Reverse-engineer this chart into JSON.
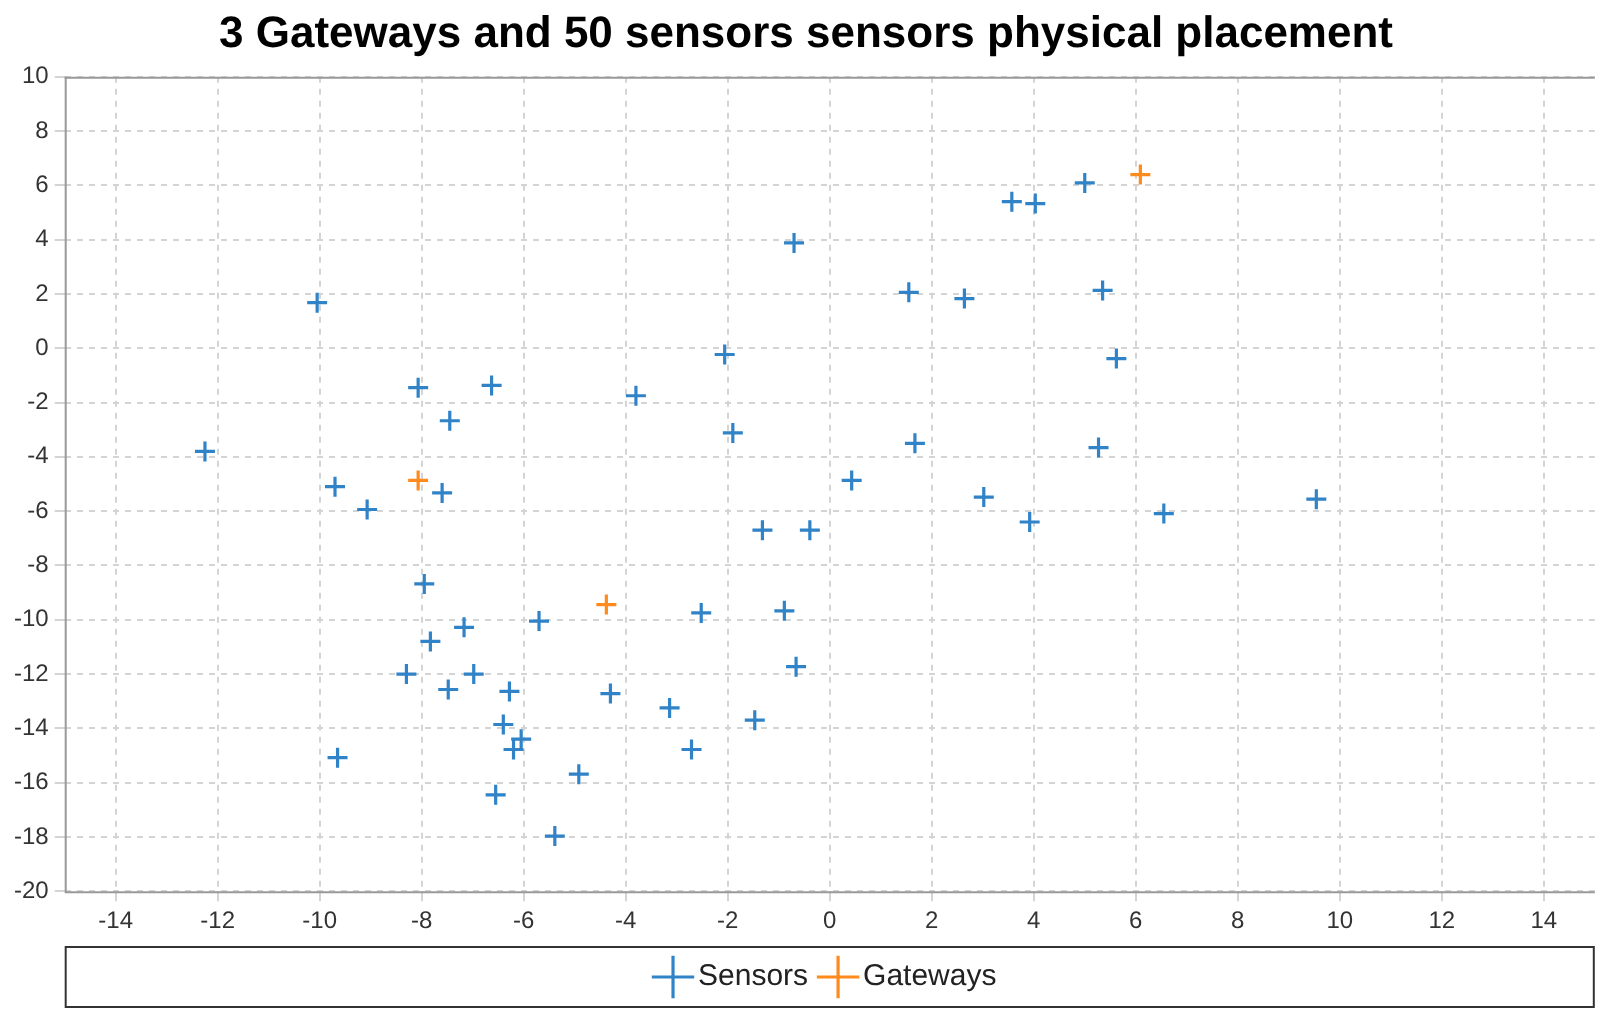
{
  "chart_data": {
    "type": "scatter",
    "title": "3 Gateways and 50 sensors sensors physical placement",
    "xlim": [
      -15,
      15
    ],
    "ylim": [
      -20,
      10
    ],
    "xticks": [
      -14,
      -12,
      -10,
      -8,
      -6,
      -4,
      -2,
      0,
      2,
      4,
      6,
      8,
      10,
      12,
      14
    ],
    "yticks": [
      -20,
      -18,
      -16,
      -14,
      -12,
      -10,
      -8,
      -6,
      -4,
      -2,
      0,
      2,
      4,
      6,
      8,
      10
    ],
    "grid": true,
    "legend": "bottom",
    "marker": "cross",
    "series": [
      {
        "name": "Sensors",
        "color": "#3183c8",
        "x": [
          -12.25,
          -10.05,
          -9.7,
          -9.07,
          -9.65,
          -8.07,
          -7.45,
          -7.6,
          -7.95,
          -7.83,
          -8.3,
          -7.17,
          -6.98,
          -7.48,
          -6.63,
          -6.28,
          -6.4,
          -6.05,
          -6.2,
          -6.55,
          -5.7,
          -5.39,
          -4.92,
          -4.3,
          -3.8,
          -3.14,
          -2.71,
          -2.52,
          -2.06,
          -1.9,
          -1.32,
          -1.47,
          -0.89,
          -0.66,
          -0.39,
          -0.7,
          0.43,
          1.55,
          1.67,
          2.64,
          3.02,
          3.57,
          4.03,
          3.92,
          5.0,
          5.35,
          5.27,
          5.62,
          6.55,
          9.54
        ],
        "values": [
          -3.8,
          1.68,
          -5.1,
          -5.94,
          -15.08,
          -1.45,
          -2.67,
          -5.33,
          -8.68,
          -10.8,
          -12.0,
          -10.28,
          -12.0,
          -12.57,
          -1.37,
          -12.64,
          -13.86,
          -14.4,
          -14.78,
          -16.45,
          -10.05,
          -17.97,
          -15.69,
          -12.72,
          -1.75,
          -13.25,
          -14.78,
          -9.75,
          -0.23,
          -3.12,
          -6.7,
          -13.7,
          -9.67,
          -11.73,
          -6.7,
          3.88,
          -4.87,
          2.06,
          -3.5,
          1.83,
          -5.48,
          5.4,
          5.33,
          -6.4,
          6.09,
          2.13,
          -3.66,
          -0.38,
          -6.09,
          -5.56
        ]
      },
      {
        "name": "Gateways",
        "color": "#ff8a1e",
        "x": [
          6.09,
          -8.07,
          -4.38
        ],
        "values": [
          6.4,
          -4.87,
          -9.44
        ]
      }
    ]
  }
}
